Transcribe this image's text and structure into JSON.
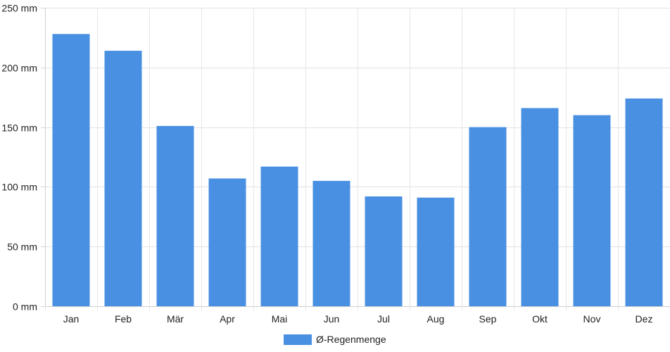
{
  "chart_data": {
    "type": "bar",
    "title": "",
    "xlabel": "",
    "ylabel": "",
    "categories": [
      "Jan",
      "Feb",
      "Mär",
      "Apr",
      "Mai",
      "Jun",
      "Jul",
      "Aug",
      "Sep",
      "Okt",
      "Nov",
      "Dez"
    ],
    "series": [
      {
        "name": "Ø-Regenmenge",
        "color": "#4a90e2",
        "values": [
          228,
          214,
          151,
          107,
          117,
          105,
          92,
          91,
          150,
          166,
          160,
          174
        ]
      }
    ],
    "ylim": [
      0,
      250
    ],
    "yticks": [
      0,
      50,
      100,
      150,
      200,
      250
    ],
    "ytick_labels": [
      "0 mm",
      "50 mm",
      "100 mm",
      "150 mm",
      "200 mm",
      "250 mm"
    ],
    "unit": "mm",
    "grid": true,
    "legend_position": "bottom-center"
  },
  "legend": {
    "label": "Ø-Regenmenge",
    "color": "#4a90e2"
  }
}
